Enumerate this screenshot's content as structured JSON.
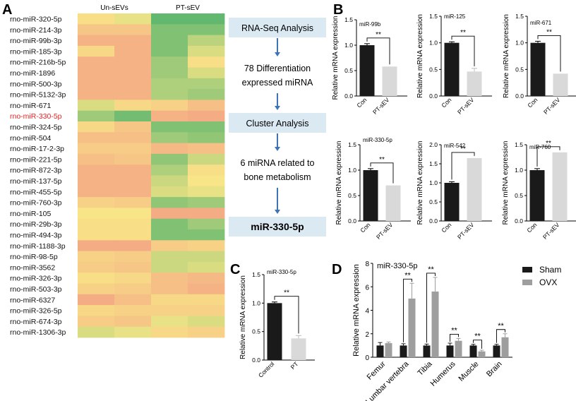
{
  "panel_labels": {
    "A": "A",
    "B": "B",
    "C": "C",
    "D": "D"
  },
  "flowchart": {
    "steps": [
      {
        "label": "RNA-Seq Analysis",
        "boxed": true,
        "bold": false
      },
      {
        "label": "78 Differentiation\nexpressed miRNA",
        "boxed": false,
        "bold": false
      },
      {
        "label": "Cluster Analysis",
        "boxed": true,
        "bold": false
      },
      {
        "label": "6 miRNA related to\nbone metabolism",
        "boxed": false,
        "bold": false
      },
      {
        "label": "miR-330-5p",
        "boxed": true,
        "bold": true
      }
    ],
    "box_color": "#dbe9f3",
    "arrow_color": "#3e74b5"
  },
  "chart_data": [
    {
      "panel": "A",
      "type": "heatmap",
      "columns": [
        "Un-sEVs",
        "PT-sEV"
      ],
      "samples_per_group": 2,
      "rows": [
        "rno-miR-320-5p",
        "rno-miR-214-3p",
        "rno-miR-99b-3p",
        "rno-miR-185-3p",
        "rno-miR-216b-5p",
        "rno-miR-1896",
        "rno-miR-500-3p",
        "rno-miR-5132-3p",
        "rno-miR-671",
        "rno-miR-330-5p",
        "rno-miR-324-5p",
        "rno-miR-504",
        "rno-miR-17-2-3p",
        "rno-miR-221-5p",
        "rno-miR-872-3p",
        "rno-miR-137-5p",
        "rno-miR-455-5p",
        "rno-miR-760-3p",
        "rno-miR-105",
        "rno-miR-29b-3p",
        "rno-miR-494-3p",
        "rno-miR-1188-3p",
        "rno-miR-98-5p",
        "rno-miR-3562",
        "rno-miR-326-3p",
        "rno-miR-503-3p",
        "rno-miR-6327",
        "rno-miR-326-5p",
        "rno-miR-674-3p",
        "rno-miR-1306-3p"
      ],
      "highlight_row": "rno-miR-330-5p",
      "highlight_color": "#e8231f",
      "colormap": {
        "low": "#63b86f",
        "mid": "#f8e587",
        "high": "#f4a685"
      },
      "values": [
        [
          0.1,
          -0.1,
          -1.0,
          -1.0
        ],
        [
          0.5,
          0.5,
          -0.8,
          -0.8
        ],
        [
          0.8,
          0.8,
          -0.8,
          -0.4
        ],
        [
          0.2,
          0.8,
          -0.8,
          -0.2
        ],
        [
          0.8,
          0.8,
          -0.6,
          0.1
        ],
        [
          0.8,
          0.8,
          -0.6,
          -0.2
        ],
        [
          0.8,
          0.8,
          -0.5,
          -0.5
        ],
        [
          0.8,
          0.8,
          -0.5,
          -0.6
        ],
        [
          -0.2,
          0.2,
          0.3,
          0.6
        ],
        [
          -0.6,
          -0.9,
          0.8,
          0.9
        ],
        [
          0.2,
          0.5,
          -0.8,
          -0.8
        ],
        [
          0.6,
          0.6,
          -0.6,
          -0.7
        ],
        [
          0.4,
          0.4,
          0.7,
          0.6
        ],
        [
          0.6,
          0.5,
          -0.7,
          -0.3
        ],
        [
          0.8,
          0.8,
          -0.5,
          0.1
        ],
        [
          0.8,
          0.8,
          -0.3,
          0.0
        ],
        [
          0.8,
          0.8,
          -0.2,
          -0.1
        ],
        [
          0.3,
          0.4,
          -0.7,
          -0.6
        ],
        [
          0.0,
          0.0,
          0.9,
          0.9
        ],
        [
          0.1,
          0.1,
          -0.8,
          -0.6
        ],
        [
          0.1,
          0.1,
          -0.8,
          -0.8
        ],
        [
          0.9,
          0.9,
          0.4,
          0.3
        ],
        [
          0.3,
          0.4,
          -0.3,
          -0.3
        ],
        [
          0.4,
          0.5,
          -0.3,
          -0.2
        ],
        [
          0.1,
          0.2,
          0.6,
          0.7
        ],
        [
          0.3,
          0.4,
          0.6,
          0.8
        ],
        [
          0.9,
          0.6,
          0.2,
          0.2
        ],
        [
          0.2,
          0.3,
          0.3,
          0.3
        ],
        [
          0.4,
          0.5,
          -0.1,
          -0.2
        ],
        [
          -0.2,
          -0.1,
          0.2,
          0.3
        ]
      ]
    },
    {
      "panel": "B",
      "type": "bar",
      "title": "miR-99b",
      "ylabel": "Relative mRNA expression",
      "categories": [
        "Con",
        "PT-sEV"
      ],
      "values": [
        1.0,
        0.58
      ],
      "errors": [
        0.03,
        0.0
      ],
      "colors": [
        "#1a1a1a",
        "#d9d9d9"
      ],
      "ylim": [
        0,
        1.5
      ],
      "yticks": [
        0.0,
        0.5,
        1.0,
        1.5
      ],
      "significance": "**"
    },
    {
      "panel": "B",
      "type": "bar",
      "title": "miR-125",
      "ylabel": "Relative mRNA expression",
      "categories": [
        "Con",
        "PT-sEV"
      ],
      "values": [
        1.0,
        0.46
      ],
      "errors": [
        0.02,
        0.06
      ],
      "colors": [
        "#1a1a1a",
        "#d9d9d9"
      ],
      "ylim": [
        0,
        1.5
      ],
      "yticks": [
        0.0,
        0.5,
        1.0,
        1.5
      ],
      "significance": "**"
    },
    {
      "panel": "B",
      "type": "bar",
      "title": "miR-671",
      "ylabel": "Relative mRNA expression",
      "categories": [
        "Con",
        "PT-sEV"
      ],
      "values": [
        1.0,
        0.42
      ],
      "errors": [
        0.03,
        0.0
      ],
      "colors": [
        "#1a1a1a",
        "#d9d9d9"
      ],
      "ylim": [
        0,
        1.5
      ],
      "yticks": [
        0.0,
        0.5,
        1.0,
        1.5
      ],
      "significance": "**"
    },
    {
      "panel": "B",
      "type": "bar",
      "title": "miR-330-5p",
      "ylabel": "Relative mRNA expression",
      "categories": [
        "Con",
        "PT-sEV"
      ],
      "values": [
        1.0,
        0.7
      ],
      "errors": [
        0.03,
        0.0
      ],
      "colors": [
        "#1a1a1a",
        "#d9d9d9"
      ],
      "ylim": [
        0,
        1.5
      ],
      "yticks": [
        0.0,
        0.5,
        1.0,
        1.5
      ],
      "significance": "**"
    },
    {
      "panel": "B",
      "type": "bar",
      "title": "miR-542",
      "ylabel": "Relative mRNA expression",
      "categories": [
        "Con",
        "PT-sEV"
      ],
      "values": [
        1.0,
        1.65
      ],
      "errors": [
        0.03,
        0.0
      ],
      "colors": [
        "#1a1a1a",
        "#d9d9d9"
      ],
      "ylim": [
        0,
        2.0
      ],
      "yticks": [
        0.0,
        0.5,
        1.0,
        1.5,
        2.0
      ],
      "significance": "**"
    },
    {
      "panel": "B",
      "type": "bar",
      "title": "miR-760",
      "ylabel": "Relative mRNA expression",
      "categories": [
        "Con",
        "PT-sEV"
      ],
      "values": [
        1.0,
        1.35
      ],
      "errors": [
        0.03,
        0.0
      ],
      "colors": [
        "#1a1a1a",
        "#d9d9d9"
      ],
      "ylim": [
        0,
        1.5
      ],
      "yticks": [
        0.0,
        0.5,
        1.0,
        1.5
      ],
      "significance": "**"
    },
    {
      "panel": "C",
      "type": "bar",
      "title": "miR-330-5p",
      "ylabel": "Relative mRNA expression",
      "categories": [
        "Control",
        "PT"
      ],
      "values": [
        1.0,
        0.38
      ],
      "errors": [
        0.02,
        0.05
      ],
      "colors": [
        "#1a1a1a",
        "#d9d9d9"
      ],
      "ylim": [
        0,
        1.5
      ],
      "yticks": [
        0.0,
        0.5,
        1.0,
        1.5
      ],
      "significance": "**"
    },
    {
      "panel": "D",
      "type": "bar",
      "title": "miR-330-5p",
      "ylabel": "Relative mRNA expression",
      "categories": [
        "Femur",
        "Lumbar vertebra",
        "Tibia",
        "Humerus",
        "Muscle",
        "Brain"
      ],
      "series": [
        {
          "name": "Sham",
          "color": "#1a1a1a",
          "values": [
            1.0,
            1.0,
            1.0,
            1.0,
            1.0,
            1.0
          ],
          "errors": [
            0.25,
            0.15,
            0.12,
            0.2,
            0.1,
            0.1
          ]
        },
        {
          "name": "OVX",
          "color": "#9e9e9e",
          "values": [
            1.2,
            5.0,
            5.6,
            1.4,
            0.5,
            1.7
          ],
          "errors": [
            0.1,
            1.3,
            1.2,
            0.2,
            0.1,
            0.3
          ]
        }
      ],
      "significance": [
        "",
        "**",
        "**",
        "**",
        "**",
        "**"
      ],
      "ylim": [
        0,
        8
      ],
      "yticks": [
        0,
        2,
        4,
        6,
        8
      ],
      "legend": "top-right"
    }
  ]
}
